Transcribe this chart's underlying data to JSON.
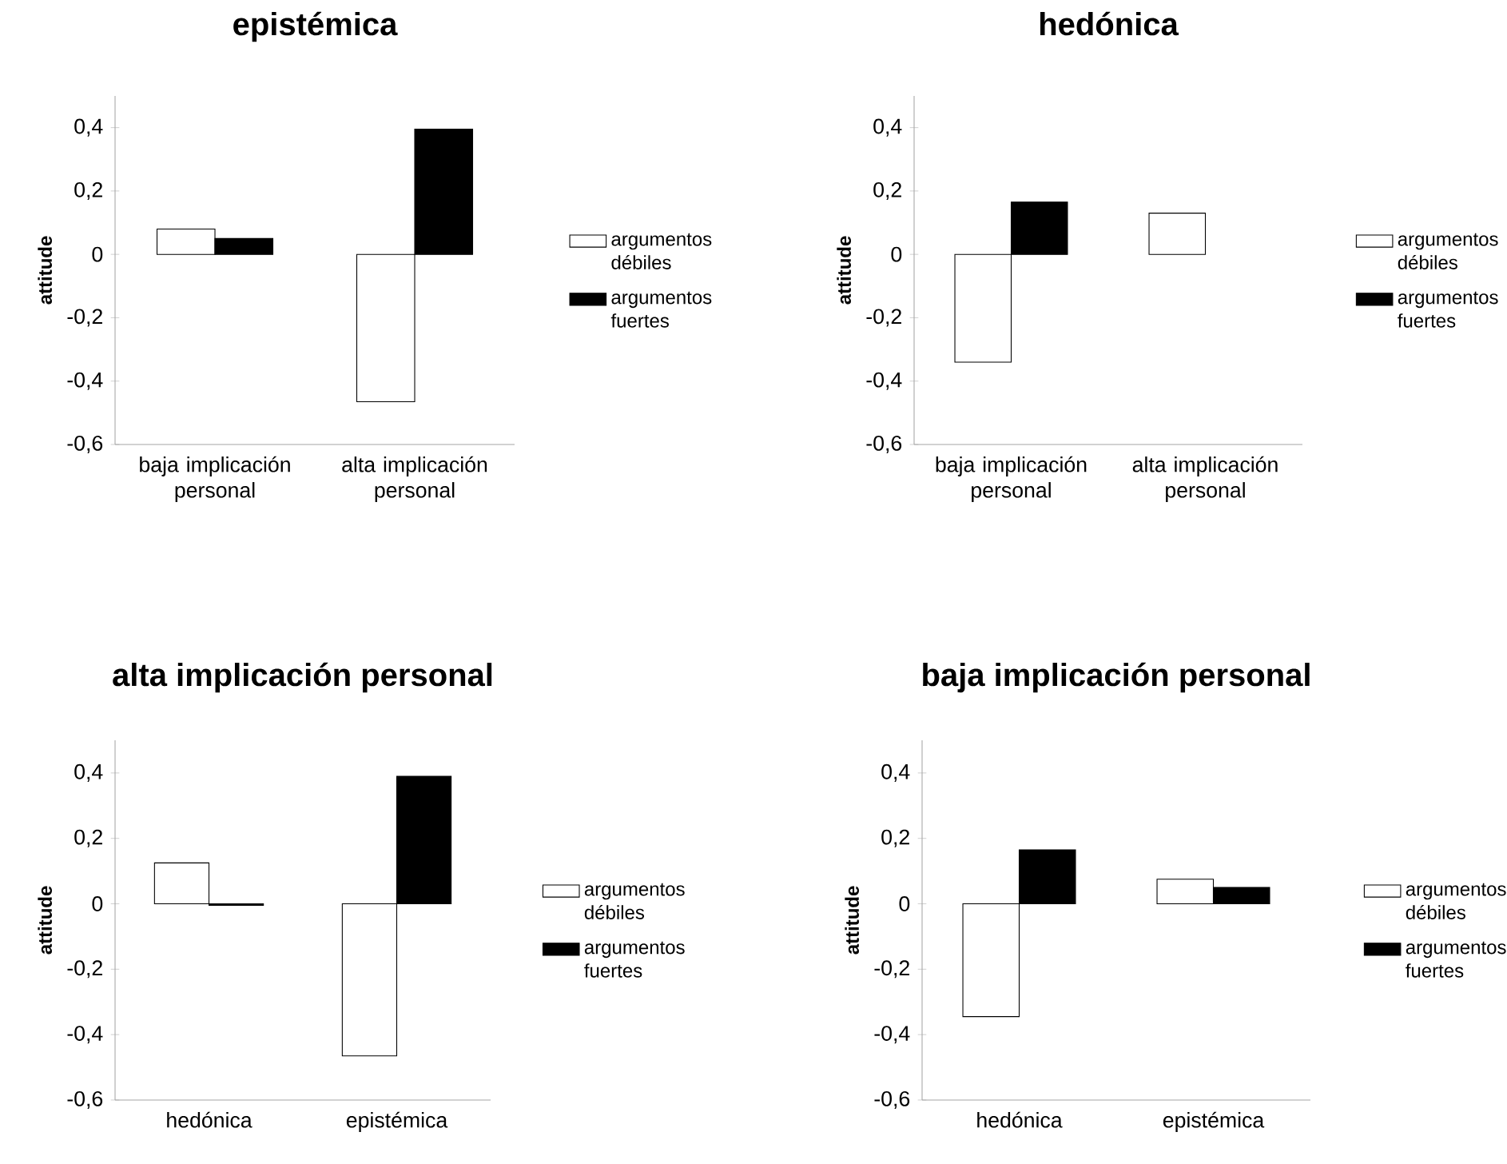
{
  "chart_data": [
    {
      "type": "bar",
      "title": "epistémica",
      "ylabel": "attitude",
      "categories": [
        "baja implicación personal",
        "alta implicación personal"
      ],
      "legend": "right",
      "series": [
        {
          "name": "argumentos débiles",
          "color": "#ffffff",
          "values": [
            0.08,
            -0.465
          ]
        },
        {
          "name": "argumentos fuertes",
          "color": "#000000",
          "values": [
            0.05,
            0.395
          ]
        }
      ],
      "ylim": [
        -0.6,
        0.5
      ],
      "yticks": [
        {
          "value": -0.6,
          "label": "-0,6"
        },
        {
          "value": -0.4,
          "label": "-0,4"
        },
        {
          "value": -0.2,
          "label": "-0,2"
        },
        {
          "value": 0,
          "label": "0"
        },
        {
          "value": 0.2,
          "label": "0,2"
        },
        {
          "value": 0.4,
          "label": "0,4"
        }
      ]
    },
    {
      "type": "bar",
      "title": "hedónica",
      "ylabel": "attitude",
      "categories": [
        "baja implicación personal",
        "alta implicación personal"
      ],
      "legend": "right",
      "series": [
        {
          "name": "argumentos débiles",
          "color": "#ffffff",
          "values": [
            -0.34,
            0.13
          ]
        },
        {
          "name": "argumentos fuertes",
          "color": "#000000",
          "values": [
            0.165,
            0.0
          ]
        }
      ],
      "ylim": [
        -0.6,
        0.5
      ],
      "yticks": [
        {
          "value": -0.6,
          "label": "-0,6"
        },
        {
          "value": -0.4,
          "label": "-0,4"
        },
        {
          "value": -0.2,
          "label": "-0,2"
        },
        {
          "value": 0,
          "label": "0"
        },
        {
          "value": 0.2,
          "label": "0,2"
        },
        {
          "value": 0.4,
          "label": "0,4"
        }
      ]
    },
    {
      "type": "bar",
      "title": "alta implicación personal",
      "ylabel": "attitude",
      "categories": [
        "hedónica",
        "epistémica"
      ],
      "legend": "right",
      "series": [
        {
          "name": "argumentos débiles",
          "color": "#ffffff",
          "values": [
            0.125,
            -0.465
          ]
        },
        {
          "name": "argumentos fuertes",
          "color": "#000000",
          "values": [
            -0.005,
            0.39
          ]
        }
      ],
      "ylim": [
        -0.6,
        0.5
      ],
      "yticks": [
        {
          "value": -0.6,
          "label": "-0,6"
        },
        {
          "value": -0.4,
          "label": "-0,4"
        },
        {
          "value": -0.2,
          "label": "-0,2"
        },
        {
          "value": 0,
          "label": "0"
        },
        {
          "value": 0.2,
          "label": "0,2"
        },
        {
          "value": 0.4,
          "label": "0,4"
        }
      ]
    },
    {
      "type": "bar",
      "title": "baja implicación personal",
      "ylabel": "attitude",
      "categories": [
        "hedónica",
        "epistémica"
      ],
      "legend": "right",
      "series": [
        {
          "name": "argumentos débiles",
          "color": "#ffffff",
          "values": [
            -0.345,
            0.075
          ]
        },
        {
          "name": "argumentos fuertes",
          "color": "#000000",
          "values": [
            0.165,
            0.05
          ]
        }
      ],
      "ylim": [
        -0.6,
        0.5
      ],
      "yticks": [
        {
          "value": -0.6,
          "label": "-0,6"
        },
        {
          "value": -0.4,
          "label": "-0,4"
        },
        {
          "value": -0.2,
          "label": "-0,2"
        },
        {
          "value": 0,
          "label": "0"
        },
        {
          "value": 0.2,
          "label": "0,2"
        },
        {
          "value": 0.4,
          "label": "0,4"
        }
      ]
    }
  ]
}
